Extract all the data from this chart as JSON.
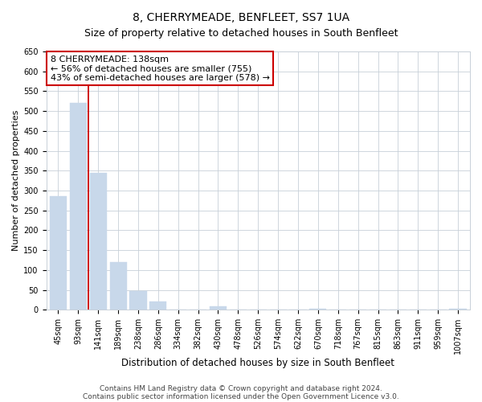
{
  "title": "8, CHERRYMEADE, BENFLEET, SS7 1UA",
  "subtitle": "Size of property relative to detached houses in South Benfleet",
  "xlabel": "Distribution of detached houses by size in South Benfleet",
  "ylabel": "Number of detached properties",
  "bar_labels": [
    "45sqm",
    "93sqm",
    "141sqm",
    "189sqm",
    "238sqm",
    "286sqm",
    "334sqm",
    "382sqm",
    "430sqm",
    "478sqm",
    "526sqm",
    "574sqm",
    "622sqm",
    "670sqm",
    "718sqm",
    "767sqm",
    "815sqm",
    "863sqm",
    "911sqm",
    "959sqm",
    "1007sqm"
  ],
  "bar_values": [
    285,
    520,
    345,
    120,
    48,
    20,
    0,
    0,
    8,
    0,
    0,
    0,
    0,
    2,
    0,
    0,
    0,
    0,
    0,
    0,
    2
  ],
  "bar_color": "#c8d8ea",
  "vline_color": "#cc0000",
  "annotation_box_text": "8 CHERRYMEADE: 138sqm\n← 56% of detached houses are smaller (755)\n43% of semi-detached houses are larger (578) →",
  "ylim": [
    0,
    650
  ],
  "yticks": [
    0,
    50,
    100,
    150,
    200,
    250,
    300,
    350,
    400,
    450,
    500,
    550,
    600,
    650
  ],
  "footnote_line1": "Contains HM Land Registry data © Crown copyright and database right 2024.",
  "footnote_line2": "Contains public sector information licensed under the Open Government Licence v3.0.",
  "title_fontsize": 10,
  "subtitle_fontsize": 9,
  "xlabel_fontsize": 8.5,
  "ylabel_fontsize": 8,
  "tick_fontsize": 7,
  "annotation_fontsize": 8,
  "footnote_fontsize": 6.5
}
